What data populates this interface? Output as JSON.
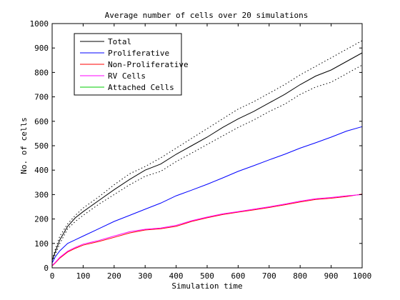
{
  "chart_data": {
    "type": "line",
    "title": "Average number of cells over 20 simulations",
    "xlabel": "Simulation time",
    "ylabel": "No. of cells",
    "xlim": [
      0,
      1000
    ],
    "ylim": [
      0,
      1000
    ],
    "xticks": [
      0,
      100,
      200,
      300,
      400,
      500,
      600,
      700,
      800,
      900,
      1000
    ],
    "yticks": [
      0,
      100,
      200,
      300,
      400,
      500,
      600,
      700,
      800,
      900,
      1000
    ],
    "grid": false,
    "legend_position": "top-left",
    "x": [
      0,
      10,
      25,
      50,
      75,
      100,
      150,
      200,
      250,
      300,
      350,
      400,
      450,
      500,
      550,
      600,
      650,
      700,
      750,
      800,
      850,
      900,
      950,
      1000
    ],
    "series": [
      {
        "name": "Total",
        "color": "#000000",
        "style": "solid",
        "values": [
          30,
          65,
          115,
          170,
          205,
          230,
          275,
          320,
          362,
          400,
          425,
          465,
          500,
          535,
          575,
          610,
          640,
          675,
          710,
          750,
          785,
          810,
          845,
          880
        ]
      },
      {
        "name": "Total upper bound",
        "in_legend": false,
        "color": "#000000",
        "style": "dotted",
        "values": [
          35,
          75,
          130,
          180,
          215,
          245,
          290,
          340,
          385,
          415,
          450,
          490,
          530,
          570,
          610,
          650,
          680,
          715,
          750,
          790,
          825,
          860,
          895,
          930
        ]
      },
      {
        "name": "Total lower bound",
        "in_legend": false,
        "color": "#000000",
        "style": "dotted",
        "values": [
          25,
          55,
          100,
          160,
          190,
          215,
          260,
          300,
          340,
          375,
          395,
          435,
          470,
          505,
          540,
          575,
          605,
          640,
          670,
          710,
          740,
          760,
          795,
          830
        ]
      },
      {
        "name": "Proliferative",
        "color": "#0000ff",
        "style": "solid",
        "values": [
          20,
          45,
          70,
          100,
          115,
          130,
          160,
          190,
          215,
          240,
          265,
          295,
          318,
          342,
          368,
          395,
          418,
          442,
          465,
          490,
          512,
          535,
          560,
          578
        ]
      },
      {
        "name": "Non-Proliferative",
        "color": "#ff0000",
        "style": "solid",
        "values": [
          8,
          20,
          40,
          65,
          80,
          93,
          108,
          125,
          143,
          155,
          160,
          170,
          190,
          205,
          218,
          228,
          237,
          247,
          258,
          270,
          280,
          285,
          292,
          302
        ]
      },
      {
        "name": "RV Cells",
        "color": "#ff00ff",
        "style": "solid",
        "values": [
          10,
          22,
          43,
          68,
          84,
          97,
          112,
          130,
          148,
          158,
          163,
          174,
          193,
          208,
          221,
          230,
          240,
          250,
          261,
          273,
          283,
          288,
          295,
          300
        ]
      },
      {
        "name": "Attached Cells",
        "color": "#00cc00",
        "style": "solid",
        "values": [
          0,
          0,
          0,
          0,
          0,
          0,
          0,
          0,
          0,
          0,
          0,
          0,
          0,
          0,
          0,
          0,
          0,
          0,
          0,
          0,
          0,
          0,
          0,
          0
        ]
      }
    ]
  }
}
